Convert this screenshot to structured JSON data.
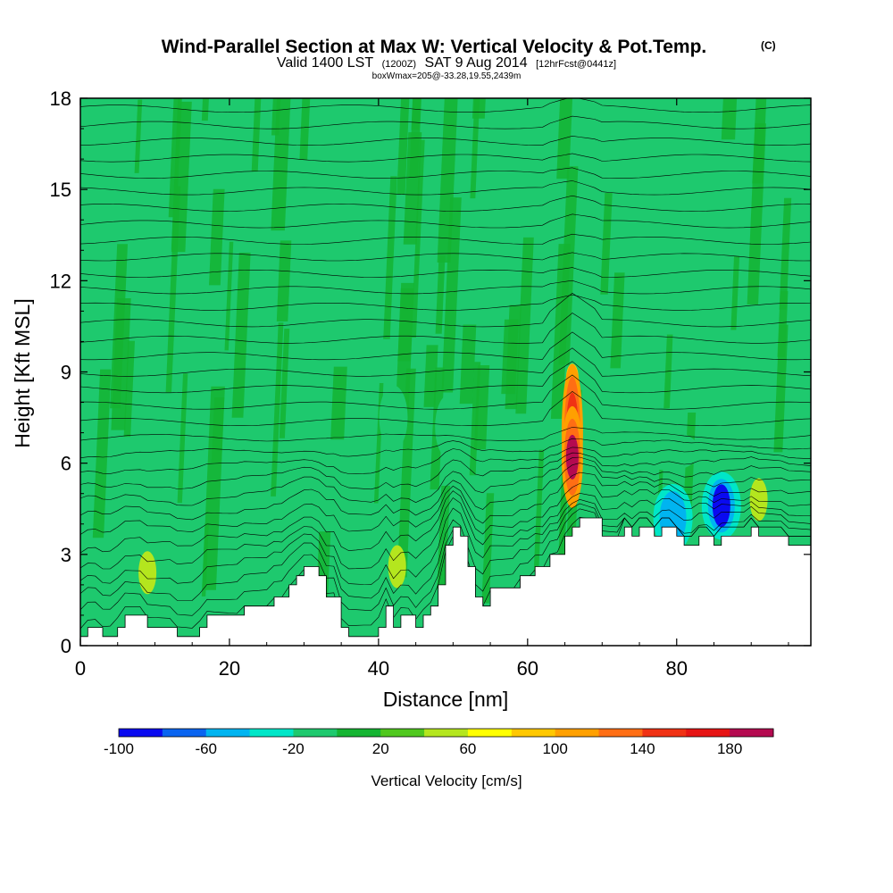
{
  "header": {
    "title": "Wind-Parallel Section at Max W: Vertical Velocity & Pot.Temp.",
    "copyright_mark": "(C)",
    "valid_prefix": "Valid 1400 LST",
    "valid_utc": "(1200Z)",
    "valid_date": "SAT 9 Aug 2014",
    "forecast_info": "[12hrFcst@0441z]",
    "box_info": "boxWmax=205@-33.28,19.55,2439m"
  },
  "chart_data": {
    "type": "heatmap",
    "xlabel": "Distance [nm]",
    "ylabel": "Height [Kft MSL]",
    "xlim": [
      0,
      98
    ],
    "ylim": [
      0,
      18
    ],
    "x_ticks": [
      0,
      20,
      40,
      60,
      80
    ],
    "y_ticks": [
      0,
      3,
      6,
      9,
      12,
      15,
      18
    ],
    "background_color": "#1ec96e",
    "colorbar": {
      "title": "Vertical Velocity [cm/s]",
      "tick_labels": [
        -100,
        -60,
        -20,
        20,
        60,
        100,
        140,
        180
      ],
      "bounds": [
        -100,
        -80,
        -60,
        -40,
        -20,
        0,
        20,
        40,
        60,
        80,
        100,
        120,
        140,
        160,
        180,
        200
      ],
      "colors": [
        "#0a0af0",
        "#0a64f0",
        "#00b4f0",
        "#00e6c8",
        "#1ec96e",
        "#14b432",
        "#50c81e",
        "#b4e61e",
        "#ffff00",
        "#ffc800",
        "#ffa000",
        "#ff6e14",
        "#f03214",
        "#e61414",
        "#b40a50"
      ]
    },
    "terrain": [
      [
        0,
        0.3
      ],
      [
        1,
        0.3
      ],
      [
        1,
        0.6
      ],
      [
        3,
        0.6
      ],
      [
        3,
        0.3
      ],
      [
        5,
        0.3
      ],
      [
        5,
        0.6
      ],
      [
        6,
        0.6
      ],
      [
        6,
        1
      ],
      [
        9,
        1
      ],
      [
        9,
        0.6
      ],
      [
        13,
        0.6
      ],
      [
        13,
        0.3
      ],
      [
        16,
        0.3
      ],
      [
        16,
        0.6
      ],
      [
        17,
        0.6
      ],
      [
        17,
        1
      ],
      [
        22,
        1
      ],
      [
        22,
        1.3
      ],
      [
        26,
        1.3
      ],
      [
        26,
        1.6
      ],
      [
        28,
        1.6
      ],
      [
        28,
        2
      ],
      [
        29,
        2
      ],
      [
        29,
        2.3
      ],
      [
        30,
        2.3
      ],
      [
        30,
        2.6
      ],
      [
        32,
        2.6
      ],
      [
        32,
        2.3
      ],
      [
        33,
        2.3
      ],
      [
        33,
        1.6
      ],
      [
        35,
        1.6
      ],
      [
        35,
        0.6
      ],
      [
        36,
        0.6
      ],
      [
        36,
        0.3
      ],
      [
        40,
        0.3
      ],
      [
        40,
        0.6
      ],
      [
        41,
        0.6
      ],
      [
        41,
        1.3
      ],
      [
        42,
        1.3
      ],
      [
        42,
        0.6
      ],
      [
        43,
        0.6
      ],
      [
        43,
        1
      ],
      [
        45,
        1
      ],
      [
        45,
        0.6
      ],
      [
        46,
        0.6
      ],
      [
        46,
        1
      ],
      [
        47,
        1
      ],
      [
        47,
        1.3
      ],
      [
        48,
        1.3
      ],
      [
        48,
        2
      ],
      [
        49,
        2
      ],
      [
        49,
        3.3
      ],
      [
        50,
        3.3
      ],
      [
        50,
        3.9
      ],
      [
        51,
        3.9
      ],
      [
        51,
        3.6
      ],
      [
        52,
        3.6
      ],
      [
        52,
        2.6
      ],
      [
        53,
        2.6
      ],
      [
        53,
        1.6
      ],
      [
        54,
        1.6
      ],
      [
        54,
        1.3
      ],
      [
        55,
        1.3
      ],
      [
        55,
        1.9
      ],
      [
        59,
        1.9
      ],
      [
        59,
        2.3
      ],
      [
        61,
        2.3
      ],
      [
        61,
        2.6
      ],
      [
        63,
        2.6
      ],
      [
        63,
        3
      ],
      [
        65,
        3
      ],
      [
        65,
        3.6
      ],
      [
        66,
        3.6
      ],
      [
        66,
        3.9
      ],
      [
        67,
        3.9
      ],
      [
        67,
        4.2
      ],
      [
        70,
        4.2
      ],
      [
        70,
        3.6
      ],
      [
        73,
        3.6
      ],
      [
        73,
        3.9
      ],
      [
        74,
        3.9
      ],
      [
        74,
        3.6
      ],
      [
        75,
        3.6
      ],
      [
        75,
        3.9
      ],
      [
        77,
        3.9
      ],
      [
        77,
        3.6
      ],
      [
        78,
        3.6
      ],
      [
        78,
        3.9
      ],
      [
        80,
        3.9
      ],
      [
        80,
        3.6
      ],
      [
        81,
        3.6
      ],
      [
        81,
        3.3
      ],
      [
        83,
        3.3
      ],
      [
        83,
        3.6
      ],
      [
        85,
        3.6
      ],
      [
        85,
        3.3
      ],
      [
        86,
        3.3
      ],
      [
        86,
        3.6
      ],
      [
        90,
        3.6
      ],
      [
        90,
        3.9
      ],
      [
        91,
        3.9
      ],
      [
        91,
        3.6
      ],
      [
        95,
        3.6
      ],
      [
        95,
        3.3
      ],
      [
        98,
        3.3
      ]
    ],
    "vertical_velocity_features": [
      {
        "x": 66,
        "y": 7.0,
        "value": 150
      },
      {
        "x": 66,
        "y": 6.2,
        "value": 195
      },
      {
        "x": 66,
        "y": 8.8,
        "value": 90
      },
      {
        "x": 42.5,
        "y": 2.6,
        "value": 50
      },
      {
        "x": 49.5,
        "y": 7.2,
        "value": -20
      },
      {
        "x": 42,
        "y": 7.5,
        "value": -20
      },
      {
        "x": 9,
        "y": 2.4,
        "value": 40
      },
      {
        "x": 86,
        "y": 4.6,
        "value": -90
      },
      {
        "x": 79.5,
        "y": 4.2,
        "value": -60
      },
      {
        "x": 91,
        "y": 4.8,
        "value": 50
      },
      {
        "x": 79,
        "y": 6.4,
        "value": -10
      },
      {
        "x": 88,
        "y": 6.1,
        "value": -10
      },
      {
        "x": 70.5,
        "y": 5.7,
        "value": -10
      }
    ],
    "isentrope_count": 34
  }
}
